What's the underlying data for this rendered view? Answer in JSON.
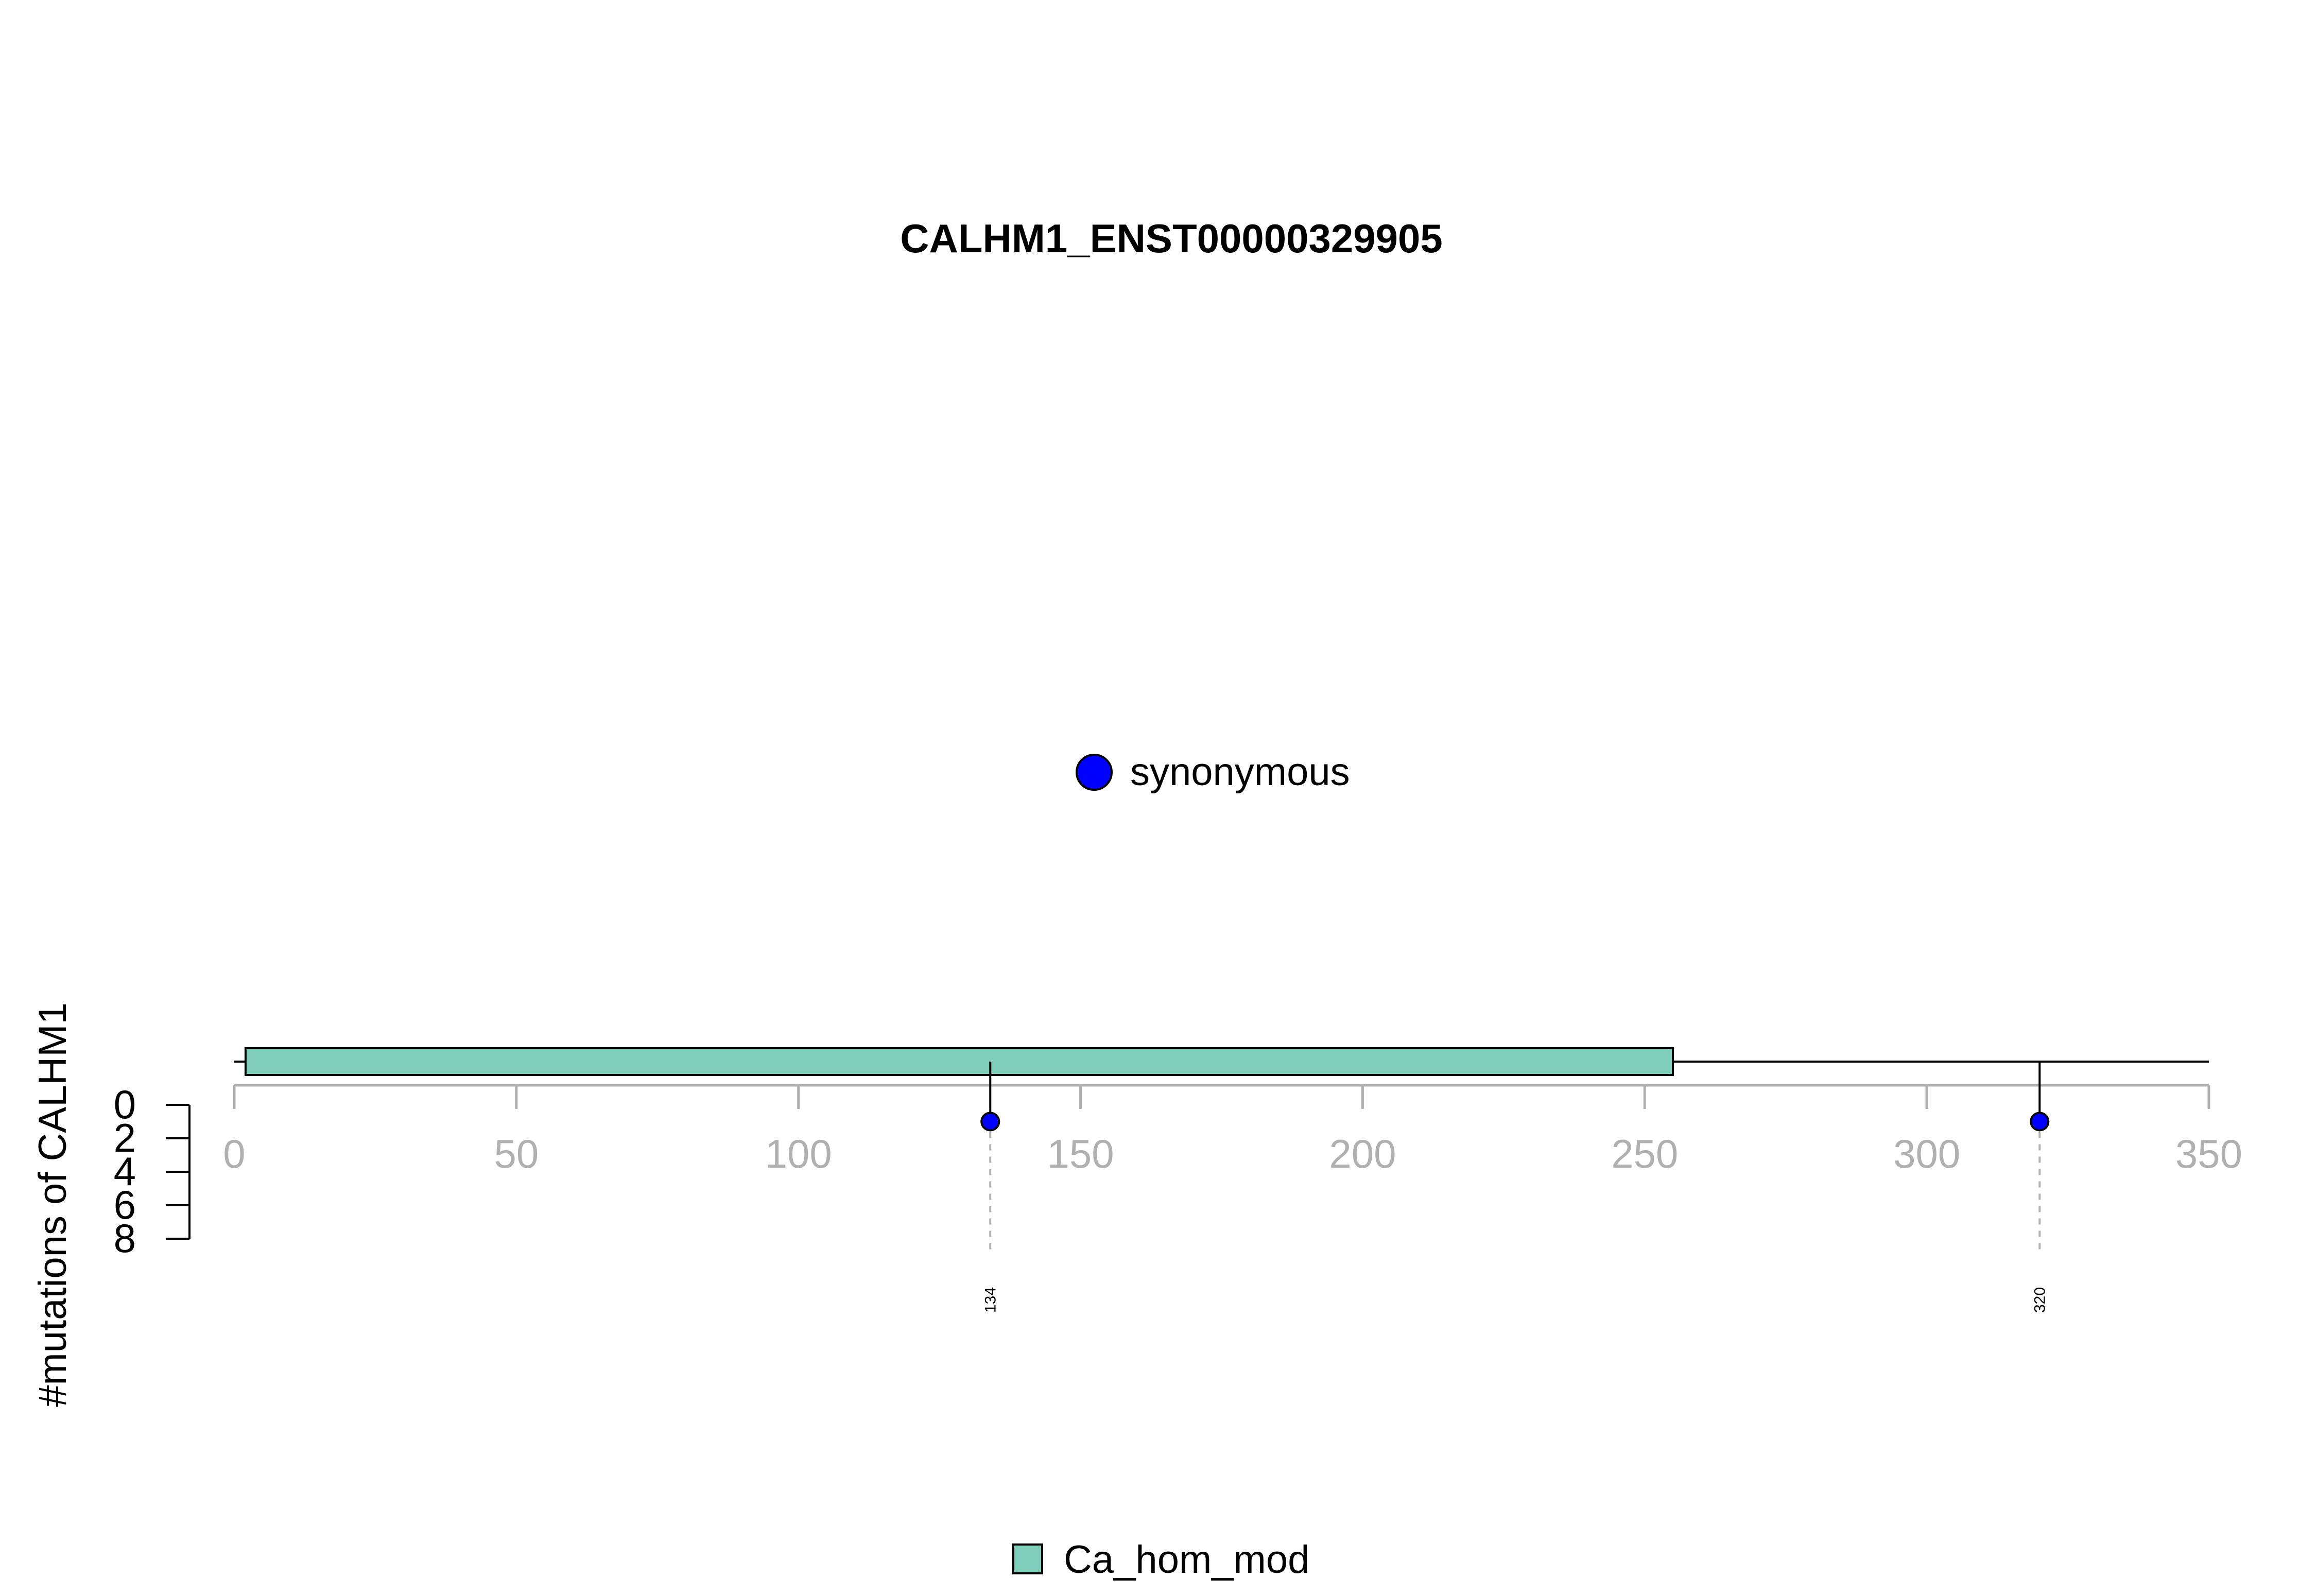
{
  "chart_data": {
    "type": "lollipop",
    "title": "CALHM1_ENST00000329905",
    "ylabel": "#mutations of CALHM1",
    "xlim": [
      0,
      350
    ],
    "x_ticks": [
      0,
      50,
      100,
      150,
      200,
      250,
      300,
      350
    ],
    "x_tick_labels": [
      "0",
      "50",
      "100",
      "150",
      "200",
      "250",
      "300",
      "350"
    ],
    "y_ticks": [
      0,
      2,
      4,
      6,
      8
    ],
    "y_tick_labels": [
      "0",
      "2",
      "4",
      "6",
      "8"
    ],
    "ylim": [
      0,
      8
    ],
    "protein_length": 350,
    "domains": [
      {
        "name": "Ca_hom_mod",
        "start": 2,
        "end": 255,
        "color": "#7fcdbb"
      }
    ],
    "mutations": [
      {
        "position": 134,
        "count": 1,
        "type": "synonymous",
        "label": "134"
      },
      {
        "position": 320,
        "count": 1,
        "type": "synonymous",
        "label": "320"
      }
    ],
    "mutation_legend": [
      {
        "label": "synonymous",
        "color": "#0000ff"
      }
    ],
    "domain_legend": [
      {
        "label": "Ca_hom_mod",
        "color": "#7fcdbb"
      }
    ],
    "colors": {
      "axis_gray": "#b0b0b0",
      "mutation": "#0000ff",
      "domain": "#7fcdbb"
    }
  }
}
